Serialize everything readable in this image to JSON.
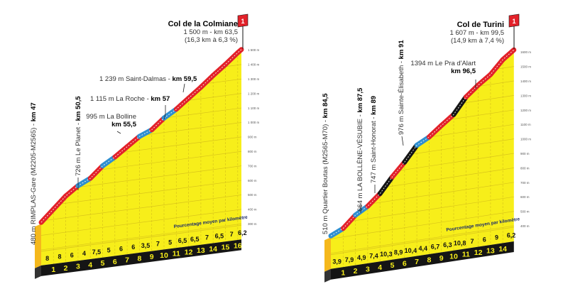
{
  "chart_data": [
    {
      "type": "area",
      "title": "Col de la Colmiane",
      "summit": {
        "line1": "1 500 m - km 63,5",
        "line2": "(16,3 km à 6,3 %)",
        "category": "1"
      },
      "start_elevation": 480,
      "summit_elevation": 1500,
      "distance_km": 16.3,
      "km_ticks": [
        "1",
        "2",
        "3",
        "4",
        "5",
        "6",
        "7",
        "8",
        "9",
        "10",
        "11",
        "12",
        "13",
        "14",
        "15",
        "16"
      ],
      "gradients": [
        8,
        8,
        6,
        4,
        7.5,
        5,
        6,
        6,
        3.5,
        7,
        5,
        6.5,
        6.5,
        7,
        6.5,
        7,
        6.2
      ],
      "gradient_labels": [
        "8",
        "8",
        "6",
        "4",
        "7,5",
        "5",
        "6",
        "6",
        "3,5",
        "7",
        "5",
        "6,5",
        "6,5",
        "7",
        "6,5",
        "7",
        "6,2"
      ],
      "y_ticks": [
        "300 m",
        "400 m",
        "500 m",
        "600 m",
        "700 m",
        "800 m",
        "900 m",
        "1 000 m",
        "1 100 m",
        "1 200 m",
        "1 300 m",
        "1 400 m",
        "1 500 m"
      ],
      "ylim": [
        300,
        1500
      ],
      "legend": "Pourcentage moyen par kilomètre",
      "annotations": [
        {
          "text": "480 m RIMPLAS-Gare (M2205-M2565) - ",
          "km": "km 47"
        },
        {
          "text": "726 m Le Planet - ",
          "km": "km 50,5"
        },
        {
          "text": "995 m La Bolline",
          "km": "km 55,5"
        },
        {
          "text": "1 115 m La Roche - ",
          "km": "km 57"
        },
        {
          "text": "1 239 m Saint-Dalmas - ",
          "km": "km 59,5"
        }
      ]
    },
    {
      "type": "area",
      "title": "Col de Turini",
      "summit": {
        "line1": "1 607 m - km 99,5",
        "line2": "(14,9 km à 7,4 %)",
        "category": "1"
      },
      "start_elevation": 510,
      "summit_elevation": 1607,
      "distance_km": 14.9,
      "km_ticks": [
        "1",
        "2",
        "3",
        "4",
        "5",
        "6",
        "7",
        "8",
        "9",
        "10",
        "11",
        "12",
        "13",
        "14"
      ],
      "gradients": [
        3.9,
        7.9,
        4.9,
        7.4,
        10.3,
        8.9,
        10.4,
        4.4,
        6.7,
        6.3,
        10.8,
        7,
        6,
        9,
        6.2
      ],
      "gradient_labels": [
        "3,9",
        "7,9",
        "4,9",
        "7,4",
        "10,3",
        "8,9",
        "10,4",
        "4,4",
        "6,7",
        "6,3",
        "10,8",
        "7",
        "6",
        "9",
        "6,2"
      ],
      "y_ticks": [
        "400 m",
        "500 m",
        "600 m",
        "700 m",
        "800 m",
        "900 m",
        "1000 m",
        "1100 m",
        "1200 m",
        "1300 m",
        "1400 m",
        "1500 m",
        "1600 m"
      ],
      "ylim": [
        400,
        1600
      ],
      "legend": "Pourcentage moyen par kilomètre",
      "annotations": [
        {
          "text": "510 m Quartier Boutas (M2565-M70) - ",
          "km": "km 84,5"
        },
        {
          "text": "664 m LA BOLLÈNE-VÉSUBIE - ",
          "km": "km 87,5"
        },
        {
          "text": "747 m Saint-Honorat - ",
          "km": "km 89"
        },
        {
          "text": "976 m Sainte-Élisabeth - ",
          "km": "km 91"
        },
        {
          "text": "1394 m Le Pra d'Alart",
          "km": "km 96,5"
        }
      ]
    }
  ],
  "colors": {
    "yellow": "#f7ee1a",
    "red": "#e2222a",
    "blue": "#2f8fd0",
    "black": "#151515",
    "front": "#f5b81c",
    "grid": "#d9c51a"
  }
}
